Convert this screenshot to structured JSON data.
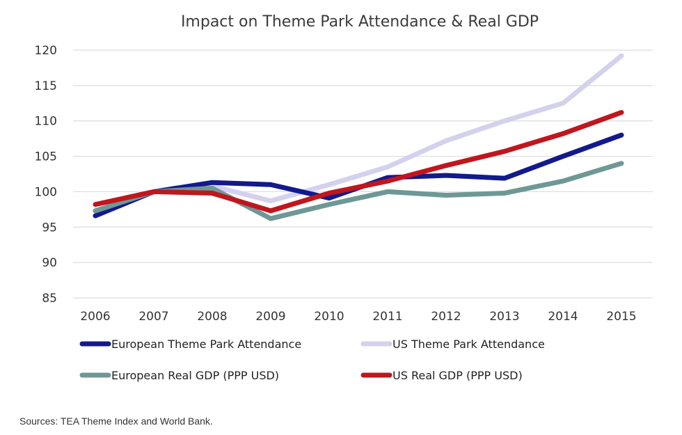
{
  "chart_data": {
    "type": "line",
    "title": "Impact on Theme Park Attendance & Real GDP",
    "xlabel": "",
    "ylabel": "",
    "x": [
      "2006",
      "2007",
      "2008",
      "2009",
      "2010",
      "2011",
      "2012",
      "2013",
      "2014",
      "2015"
    ],
    "ylim": [
      85,
      120
    ],
    "yticks": [
      120,
      115,
      110,
      105,
      100,
      95,
      90,
      85
    ],
    "grid": true,
    "legend_position": "bottom",
    "series": [
      {
        "name": "European Theme Park Attendance",
        "color": "#131a8c",
        "values": [
          96.6,
          100.0,
          101.3,
          101.0,
          99.1,
          102.0,
          102.3,
          101.9,
          105.0,
          108.0
        ]
      },
      {
        "name": "US Theme Park Attendance",
        "color": "#d3d1ec",
        "values": [
          97.3,
          100.0,
          100.8,
          98.7,
          101.0,
          103.5,
          107.2,
          110.0,
          112.5,
          119.2
        ]
      },
      {
        "name": "European Real GDP (PPP USD)",
        "color": "#6e9896",
        "values": [
          97.3,
          100.0,
          100.5,
          96.2,
          98.2,
          100.0,
          99.5,
          99.8,
          101.5,
          104.0
        ]
      },
      {
        "name": "US Real GDP (PPP USD)",
        "color": "#c0161d",
        "values": [
          98.2,
          100.0,
          99.8,
          97.3,
          99.8,
          101.5,
          103.7,
          105.7,
          108.2,
          111.2
        ]
      }
    ]
  },
  "source": "Sources: TEA Theme Index and World Bank."
}
